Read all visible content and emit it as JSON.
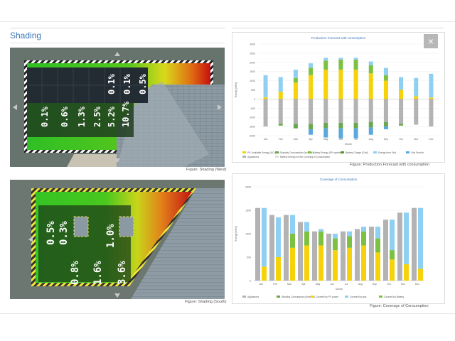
{
  "section_title": "Shading",
  "close_glyph": "×",
  "shading_west": {
    "caption": "Figure: Shading (West)",
    "module_values": [
      "0.1%",
      "0.6%",
      "1.3%",
      "2.5%",
      "5.2%",
      "10.7%",
      "0.1%",
      "0.1%",
      "0.5%"
    ]
  },
  "shading_south": {
    "caption": "Figure: Shading (South)",
    "module_values": [
      "0.5%",
      "0.3%",
      "0.8%",
      "1.6%",
      "1.0%",
      "3.6%"
    ]
  },
  "production_chart": {
    "caption": "Figure: Production Forecast with consumption",
    "chart_data": {
      "type": "bar",
      "title": "Production Forecast with consumption",
      "xlabel": "Month",
      "ylabel": "Energy [kWh]",
      "ylim": [
        -2000,
        3000
      ],
      "categories": [
        "Jan",
        "Feb",
        "Mar",
        "Apr",
        "May",
        "Jun",
        "Jul",
        "Aug",
        "Sep",
        "Oct",
        "Nov",
        "Dec"
      ],
      "series": [
        {
          "name": "PV: Available Energy (AC grid)",
          "color": "#f5d20a",
          "values": [
            100,
            400,
            900,
            1300,
            1600,
            1600,
            1600,
            1400,
            1000,
            500,
            150,
            80
          ]
        },
        {
          "name": "Battery Energy (PV system)",
          "color": "#7cc142",
          "values": [
            0,
            0,
            250,
            400,
            500,
            550,
            550,
            450,
            300,
            0,
            0,
            0
          ]
        },
        {
          "name": "Energy from Grid",
          "color": "#8fd0f2",
          "values": [
            1200,
            800,
            450,
            250,
            150,
            100,
            100,
            200,
            400,
            700,
            1000,
            1300
          ]
        },
        {
          "name": "Appliances",
          "color": "#b3b3b3",
          "values": [
            -1500,
            -1350,
            -1350,
            -1350,
            -1300,
            -1300,
            -1300,
            -1250,
            -1250,
            -1350,
            -1400,
            -1500
          ]
        },
        {
          "name": "Standby Consumption (Inverter)",
          "color": "#6aa84f",
          "values": [
            0,
            -100,
            -250,
            -300,
            -300,
            -300,
            -300,
            -300,
            -250,
            -100,
            0,
            0
          ]
        },
        {
          "name": "Feed-in",
          "color": "#5aa8e0",
          "values": [
            0,
            0,
            0,
            -300,
            -500,
            -550,
            -550,
            -400,
            -150,
            0,
            0,
            0
          ]
        }
      ],
      "legend": [
        "PV: Available Energy (AC grid)",
        "Standby Consumption (Inverter)",
        "Battery Energy (PV system)",
        "Battery Charge (Grid)",
        "Energy from Grid",
        "Grid Feed-in",
        "Appliances",
        "Battery Energy for the Covering of Consumption"
      ],
      "yticks": [
        "3000",
        "2500",
        "2000",
        "1500",
        "1000",
        "500",
        "0",
        "-500",
        "-1000",
        "-1500",
        "-2000"
      ]
    }
  },
  "coverage_chart": {
    "caption": "Figure: Coverage of Consumption",
    "chart_data": {
      "type": "bar",
      "title": "Coverage of Consumption",
      "xlabel": "Month",
      "ylabel": "Energy [kWh]",
      "ylim": [
        0,
        2000
      ],
      "categories": [
        "Jan",
        "Feb",
        "Mar",
        "Apr",
        "May",
        "Jun",
        "Jul",
        "Aug",
        "Sep",
        "Oct",
        "Nov",
        "Dec"
      ],
      "series": [
        {
          "name": "Appliances",
          "color": "#b3b3b3",
          "values": [
            1550,
            1400,
            1400,
            1250,
            1050,
            1000,
            1050,
            1100,
            1150,
            1300,
            1450,
            1550
          ]
        },
        {
          "name": "Covered by PV power",
          "color": "#f5d20a",
          "values": [
            300,
            500,
            700,
            750,
            750,
            650,
            700,
            750,
            600,
            450,
            350,
            250
          ]
        },
        {
          "name": "Covered by battery",
          "color": "#7cc142",
          "values": [
            0,
            0,
            300,
            300,
            300,
            250,
            250,
            300,
            300,
            200,
            0,
            0
          ]
        },
        {
          "name": "Covered by grid",
          "color": "#8fd0f2",
          "values": [
            1250,
            850,
            400,
            200,
            50,
            100,
            100,
            100,
            250,
            650,
            1100,
            1300
          ]
        }
      ],
      "legend": [
        "Appliances",
        "Standby Consumption (Inverter)",
        "Covered by PV power",
        "Covered by grid",
        "Covered by Battery"
      ],
      "yticks": [
        "2000",
        "1500",
        "1000",
        "500",
        "0"
      ]
    }
  }
}
